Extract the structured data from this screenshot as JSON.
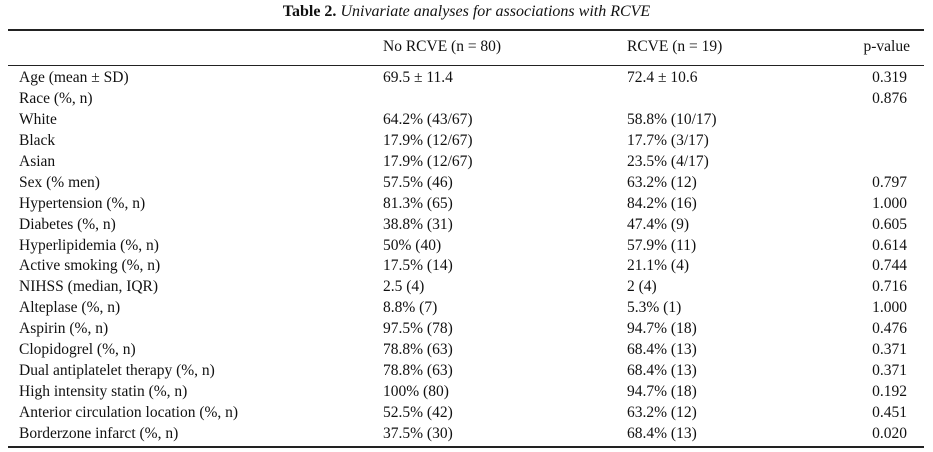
{
  "table": {
    "caption_lead": "Table 2.",
    "caption_title": "Univariate analyses for associations with RCVE",
    "columns": [
      "No RCVE (n = 80)",
      "RCVE (n = 19)",
      "p-value"
    ],
    "rows": [
      {
        "label": "Age (mean ± SD)",
        "no_rcve": "69.5 ± 11.4",
        "rcve": "72.4 ± 10.6",
        "p": "0.319"
      },
      {
        "label": "Race (%, n)",
        "no_rcve": "",
        "rcve": "",
        "p": "0.876"
      },
      {
        "label": "White",
        "no_rcve": "64.2% (43/67)",
        "rcve": "58.8% (10/17)",
        "p": ""
      },
      {
        "label": "Black",
        "no_rcve": "17.9% (12/67)",
        "rcve": "17.7% (3/17)",
        "p": ""
      },
      {
        "label": "Asian",
        "no_rcve": "17.9% (12/67)",
        "rcve": "23.5% (4/17)",
        "p": ""
      },
      {
        "label": "Sex (% men)",
        "no_rcve": "57.5% (46)",
        "rcve": "63.2% (12)",
        "p": "0.797"
      },
      {
        "label": "Hypertension (%, n)",
        "no_rcve": "81.3% (65)",
        "rcve": "84.2% (16)",
        "p": "1.000"
      },
      {
        "label": "Diabetes (%, n)",
        "no_rcve": "38.8% (31)",
        "rcve": "47.4% (9)",
        "p": "0.605"
      },
      {
        "label": "Hyperlipidemia (%, n)",
        "no_rcve": "50% (40)",
        "rcve": "57.9% (11)",
        "p": "0.614"
      },
      {
        "label": "Active smoking (%, n)",
        "no_rcve": "17.5% (14)",
        "rcve": "21.1% (4)",
        "p": "0.744"
      },
      {
        "label": "NIHSS (median, IQR)",
        "no_rcve": "2.5 (4)",
        "rcve": "2 (4)",
        "p": "0.716"
      },
      {
        "label": "Alteplase (%, n)",
        "no_rcve": "8.8% (7)",
        "rcve": "5.3% (1)",
        "p": "1.000"
      },
      {
        "label": "Aspirin (%, n)",
        "no_rcve": "97.5% (78)",
        "rcve": "94.7% (18)",
        "p": "0.476"
      },
      {
        "label": "Clopidogrel (%, n)",
        "no_rcve": "78.8% (63)",
        "rcve": "68.4% (13)",
        "p": "0.371"
      },
      {
        "label": "Dual antiplatelet therapy (%, n)",
        "no_rcve": "78.8% (63)",
        "rcve": "68.4% (13)",
        "p": "0.371"
      },
      {
        "label": "High intensity statin (%, n)",
        "no_rcve": "100% (80)",
        "rcve": "94.7% (18)",
        "p": "0.192"
      },
      {
        "label": "Anterior circulation location (%, n)",
        "no_rcve": "52.5% (42)",
        "rcve": "63.2% (12)",
        "p": "0.451"
      },
      {
        "label": "Borderzone infarct (%, n)",
        "no_rcve": "37.5% (30)",
        "rcve": "68.4% (13)",
        "p": "0.020"
      }
    ]
  }
}
